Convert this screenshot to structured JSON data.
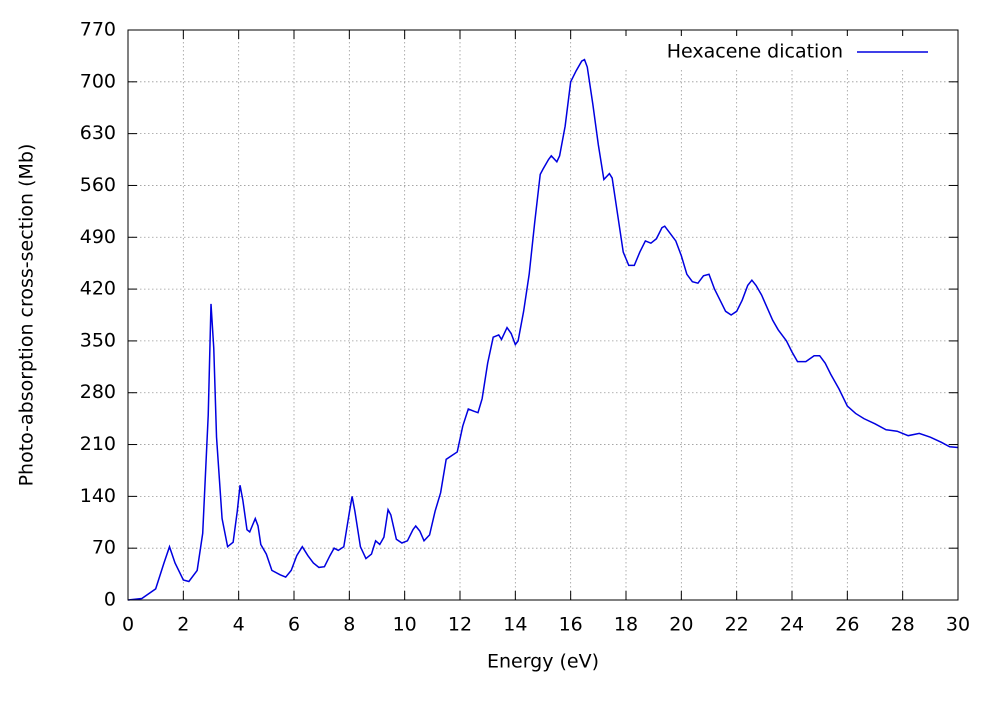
{
  "chart_data": {
    "type": "line",
    "xlabel": "Energy (eV)",
    "ylabel": "Photo-absorption cross-section (Mb)",
    "x": [
      0,
      0.5,
      1.0,
      1.3,
      1.5,
      1.7,
      2.0,
      2.2,
      2.5,
      2.7,
      2.9,
      3.0,
      3.1,
      3.2,
      3.4,
      3.6,
      3.8,
      3.95,
      4.05,
      4.15,
      4.3,
      4.4,
      4.6,
      4.7,
      4.8,
      5.0,
      5.2,
      5.5,
      5.7,
      5.9,
      6.1,
      6.3,
      6.5,
      6.7,
      6.9,
      7.1,
      7.3,
      7.45,
      7.6,
      7.8,
      8.0,
      8.1,
      8.2,
      8.4,
      8.6,
      8.8,
      8.95,
      9.1,
      9.25,
      9.4,
      9.5,
      9.7,
      9.9,
      10.1,
      10.3,
      10.4,
      10.55,
      10.7,
      10.9,
      11.1,
      11.3,
      11.5,
      11.7,
      11.9,
      12.1,
      12.3,
      12.5,
      12.65,
      12.8,
      13.0,
      13.2,
      13.4,
      13.5,
      13.7,
      13.85,
      14.0,
      14.1,
      14.3,
      14.5,
      14.7,
      14.9,
      15.0,
      15.2,
      15.3,
      15.5,
      15.6,
      15.8,
      16.0,
      16.2,
      16.4,
      16.5,
      16.6,
      16.8,
      17.0,
      17.2,
      17.4,
      17.5,
      17.7,
      17.9,
      18.1,
      18.3,
      18.5,
      18.7,
      18.9,
      19.1,
      19.3,
      19.4,
      19.6,
      19.8,
      20.0,
      20.2,
      20.4,
      20.6,
      20.8,
      21.0,
      21.2,
      21.4,
      21.6,
      21.8,
      22.0,
      22.2,
      22.4,
      22.55,
      22.7,
      22.9,
      23.1,
      23.3,
      23.5,
      23.8,
      24.0,
      24.2,
      24.5,
      24.8,
      25.0,
      25.2,
      25.4,
      25.7,
      26.0,
      26.3,
      26.6,
      27.0,
      27.4,
      27.8,
      28.2,
      28.6,
      29.0,
      29.4,
      29.7,
      30.0
    ],
    "series": [
      {
        "name": "Hexacene dication",
        "color": "#0000e0",
        "values": [
          0,
          2,
          15,
          50,
          72,
          50,
          27,
          25,
          40,
          90,
          250,
          400,
          340,
          220,
          110,
          72,
          78,
          120,
          155,
          135,
          95,
          92,
          110,
          100,
          75,
          62,
          40,
          34,
          31,
          40,
          60,
          72,
          60,
          50,
          44,
          45,
          60,
          70,
          67,
          72,
          118,
          140,
          120,
          72,
          56,
          62,
          80,
          75,
          85,
          122,
          115,
          82,
          77,
          80,
          95,
          100,
          93,
          80,
          88,
          120,
          145,
          190,
          195,
          200,
          235,
          258,
          255,
          253,
          272,
          320,
          355,
          358,
          352,
          368,
          360,
          345,
          350,
          390,
          440,
          510,
          575,
          582,
          595,
          600,
          592,
          600,
          640,
          700,
          715,
          728,
          730,
          720,
          670,
          615,
          568,
          576,
          570,
          520,
          470,
          452,
          452,
          470,
          485,
          482,
          488,
          503,
          505,
          495,
          485,
          465,
          440,
          430,
          428,
          438,
          440,
          420,
          405,
          390,
          385,
          390,
          405,
          425,
          432,
          425,
          412,
          395,
          378,
          365,
          350,
          335,
          322,
          322,
          330,
          330,
          320,
          305,
          285,
          262,
          252,
          245,
          238,
          230,
          228,
          222,
          225,
          220,
          213,
          207,
          206
        ]
      }
    ],
    "xlim": [
      0,
      30
    ],
    "xticks": [
      0,
      2,
      4,
      6,
      8,
      10,
      12,
      14,
      16,
      18,
      20,
      22,
      24,
      26,
      28,
      30
    ],
    "ylim": [
      0,
      770
    ],
    "yticks": [
      0,
      70,
      140,
      210,
      280,
      350,
      420,
      490,
      560,
      630,
      700,
      770
    ],
    "grid": true,
    "legend": "top-right"
  }
}
